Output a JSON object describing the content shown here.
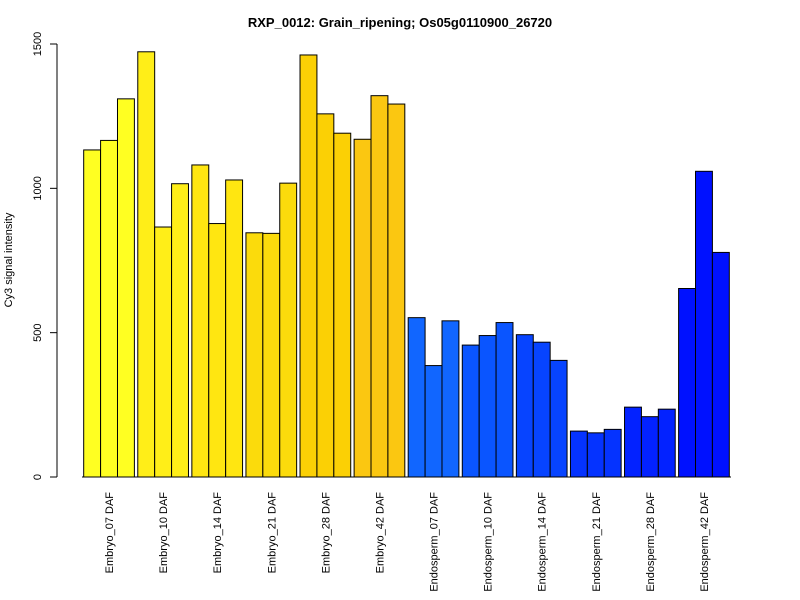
{
  "chart_data": {
    "type": "bar",
    "title": "RXP_0012: Grain_ripening; Os05g0110900_26720",
    "xlabel": "",
    "ylabel": "Cy3 signal intensity",
    "ylim": [
      0,
      1500
    ],
    "yticks": [
      0,
      500,
      1000,
      1500
    ],
    "grid": false,
    "categories": [
      "Embryo_07 DAF",
      "Embryo_10 DAF",
      "Embryo_14 DAF",
      "Embryo_21 DAF",
      "Embryo_28 DAF",
      "Embryo_42 DAF",
      "Endosperm_07 DAF",
      "Endosperm_10 DAF",
      "Endosperm_14 DAF",
      "Endosperm_21 DAF",
      "Endosperm_28 DAF",
      "Endosperm_42 DAF"
    ],
    "values": [
      [
        1133,
        1166,
        1310
      ],
      [
        1473,
        866,
        1016
      ],
      [
        1081,
        878,
        1029
      ],
      [
        846,
        844,
        1018
      ],
      [
        1462,
        1258,
        1191
      ],
      [
        1170,
        1321,
        1292
      ],
      [
        552,
        386,
        541
      ],
      [
        457,
        490,
        535
      ],
      [
        493,
        467,
        404
      ],
      [
        159,
        153,
        165
      ],
      [
        242,
        209,
        235
      ],
      [
        653,
        1059,
        778
      ]
    ],
    "colors": [
      "#ffff22",
      "#ffee18",
      "#ffe611",
      "#fbdb0c",
      "#fbd005",
      "#fbc711",
      "#1166ff",
      "#0a55ff",
      "#0744ff",
      "#0533ff",
      "#0322ff",
      "#0011ff"
    ]
  }
}
